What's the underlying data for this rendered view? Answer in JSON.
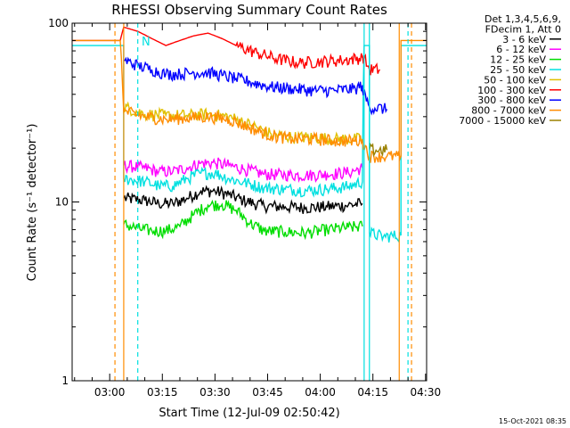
{
  "chart_data": {
    "type": "line",
    "title": "RHESSI Observing Summary Count Rates",
    "xlabel": "Start Time (12-Jul-09 02:50:42)",
    "ylabel": "Count Rate (s⁻¹ detector⁻¹)",
    "ylog": true,
    "ylim": [
      1,
      100
    ],
    "xlim_minutes": [
      -10.7,
      90.3
    ],
    "x_ticks": [
      {
        "label": "03:00",
        "min": 0
      },
      {
        "label": "03:15",
        "min": 15
      },
      {
        "label": "03:30",
        "min": 30
      },
      {
        "label": "03:45",
        "min": 45
      },
      {
        "label": "04:00",
        "min": 60
      },
      {
        "label": "04:15",
        "min": 75
      },
      {
        "label": "04:30",
        "min": 90
      }
    ],
    "y_ticks": [
      {
        "label": "100",
        "v": 100
      },
      {
        "label": "10",
        "v": 10
      },
      {
        "label": "1",
        "v": 1
      }
    ],
    "legend_header": [
      "Det 1,3,4,5,6,9,",
      "FDecim 1, Att 0"
    ],
    "flag_text": "N",
    "series": [
      {
        "name": "3 - 6 keV",
        "color": "#000000",
        "points": [
          [
            4,
            10.5
          ],
          [
            10,
            10.2
          ],
          [
            14,
            9.8
          ],
          [
            18,
            9.8
          ],
          [
            22,
            10.5
          ],
          [
            26,
            11.5
          ],
          [
            30,
            11.5
          ],
          [
            34,
            11.0
          ],
          [
            38,
            10.2
          ],
          [
            44,
            9.5
          ],
          [
            50,
            9.4
          ],
          [
            56,
            9.3
          ],
          [
            62,
            9.4
          ],
          [
            68,
            9.6
          ],
          [
            72,
            9.8
          ]
        ]
      },
      {
        "name": "6 - 12 keV",
        "color": "#ff00ff",
        "points": [
          [
            4,
            16.0
          ],
          [
            10,
            15.5
          ],
          [
            14,
            14.8
          ],
          [
            18,
            14.8
          ],
          [
            22,
            15.5
          ],
          [
            26,
            16.5
          ],
          [
            30,
            16.5
          ],
          [
            34,
            16.0
          ],
          [
            38,
            15.3
          ],
          [
            44,
            14.3
          ],
          [
            50,
            14.2
          ],
          [
            56,
            14.1
          ],
          [
            62,
            14.3
          ],
          [
            68,
            14.6
          ],
          [
            72,
            15.5
          ]
        ]
      },
      {
        "name": "12 - 25 keV",
        "color": "#00dd00",
        "points": [
          [
            4,
            7.5
          ],
          [
            8,
            7.1
          ],
          [
            12,
            6.9
          ],
          [
            16,
            6.9
          ],
          [
            20,
            7.3
          ],
          [
            24,
            8.5
          ],
          [
            28,
            9.6
          ],
          [
            32,
            9.7
          ],
          [
            36,
            9.0
          ],
          [
            40,
            7.6
          ],
          [
            44,
            6.9
          ],
          [
            50,
            6.8
          ],
          [
            56,
            6.7
          ],
          [
            62,
            7.0
          ],
          [
            68,
            7.2
          ],
          [
            72,
            7.3
          ]
        ]
      },
      {
        "name": "25 - 50 keV",
        "color": "#00e0e0",
        "points": [
          [
            -10.7,
            75
          ],
          [
            4,
            75
          ],
          [
            4,
            13.5
          ],
          [
            10,
            13.0
          ],
          [
            14,
            12.3
          ],
          [
            18,
            12.3
          ],
          [
            22,
            13.5
          ],
          [
            26,
            14.5
          ],
          [
            30,
            14.5
          ],
          [
            34,
            13.5
          ],
          [
            38,
            12.9
          ],
          [
            44,
            12.0
          ],
          [
            50,
            11.8
          ],
          [
            56,
            11.6
          ],
          [
            62,
            11.8
          ],
          [
            68,
            12.2
          ],
          [
            72,
            13.0
          ],
          [
            72.5,
            75
          ],
          [
            74,
            75
          ],
          [
            74,
            6.7
          ],
          [
            78,
            6.4
          ],
          [
            83,
            6.5
          ],
          [
            83,
            75
          ],
          [
            90.3,
            75
          ]
        ]
      },
      {
        "name": "50 - 100 keV",
        "color": "#e0c000",
        "points": [
          [
            4,
            34
          ],
          [
            10,
            31
          ],
          [
            16,
            30.5
          ],
          [
            22,
            30.5
          ],
          [
            28,
            31
          ],
          [
            34,
            30
          ],
          [
            40,
            27
          ],
          [
            46,
            24
          ],
          [
            52,
            23
          ],
          [
            58,
            23
          ],
          [
            64,
            22.5
          ],
          [
            72,
            22.5
          ]
        ]
      },
      {
        "name": "100 - 300 keV",
        "color": "#ff0000",
        "points": [
          [
            -10.7,
            80
          ],
          [
            3,
            80
          ],
          [
            4,
            95
          ],
          [
            8,
            90
          ],
          [
            12,
            82
          ],
          [
            16,
            75
          ],
          [
            20,
            80
          ],
          [
            24,
            85
          ],
          [
            28,
            88
          ],
          [
            32,
            82
          ],
          [
            36,
            75
          ],
          [
            42,
            68
          ],
          [
            48,
            63
          ],
          [
            54,
            60
          ],
          [
            60,
            61
          ],
          [
            66,
            62
          ],
          [
            72,
            64
          ],
          [
            72,
            66
          ],
          [
            74,
            55
          ],
          [
            77,
            55
          ]
        ]
      },
      {
        "name": "300 - 800 keV",
        "color": "#0000ff",
        "points": [
          [
            4,
            62
          ],
          [
            8,
            58
          ],
          [
            12,
            55
          ],
          [
            16,
            52
          ],
          [
            20,
            52
          ],
          [
            24,
            53
          ],
          [
            28,
            53
          ],
          [
            32,
            51
          ],
          [
            36,
            49
          ],
          [
            40,
            47
          ],
          [
            46,
            44
          ],
          [
            52,
            43
          ],
          [
            58,
            42
          ],
          [
            64,
            42
          ],
          [
            70,
            43
          ],
          [
            72,
            45
          ],
          [
            72,
            42
          ],
          [
            74,
            34
          ],
          [
            79,
            33
          ]
        ]
      },
      {
        "name": "800 - 7000 keV",
        "color": "#ff8c00",
        "points": [
          [
            -10.7,
            80
          ],
          [
            3,
            80
          ],
          [
            4,
            32
          ],
          [
            10,
            30
          ],
          [
            16,
            29
          ],
          [
            22,
            29.5
          ],
          [
            28,
            30
          ],
          [
            34,
            29
          ],
          [
            40,
            26
          ],
          [
            46,
            23.5
          ],
          [
            52,
            22.5
          ],
          [
            58,
            22.5
          ],
          [
            64,
            22
          ],
          [
            72,
            22
          ],
          [
            74,
            18
          ],
          [
            79,
            18
          ],
          [
            83,
            18
          ],
          [
            83,
            80
          ],
          [
            90.3,
            80
          ]
        ]
      },
      {
        "name": "7000 - 15000 keV",
        "color": "#9a8000",
        "points": [
          [
            74,
            19.5
          ],
          [
            79,
            19.5
          ]
        ]
      }
    ],
    "vlines": [
      {
        "min": 1.5,
        "color": "#ff8c00",
        "style": "dashed"
      },
      {
        "min": 4.0,
        "color": "#ff8c00",
        "style": "solid"
      },
      {
        "min": 8.0,
        "color": "#00e0e0",
        "style": "dashed"
      },
      {
        "min": 72.5,
        "color": "#00e0e0",
        "style": "solid"
      },
      {
        "min": 74.0,
        "color": "#00e0e0",
        "style": "solid"
      },
      {
        "min": 82.5,
        "color": "#ff8c00",
        "style": "solid"
      },
      {
        "min": 85.0,
        "color": "#00e0e0",
        "style": "dashed"
      },
      {
        "min": 86.0,
        "color": "#ff8c00",
        "style": "dashed"
      }
    ]
  },
  "timestamp": "15-Oct-2021 08:35"
}
